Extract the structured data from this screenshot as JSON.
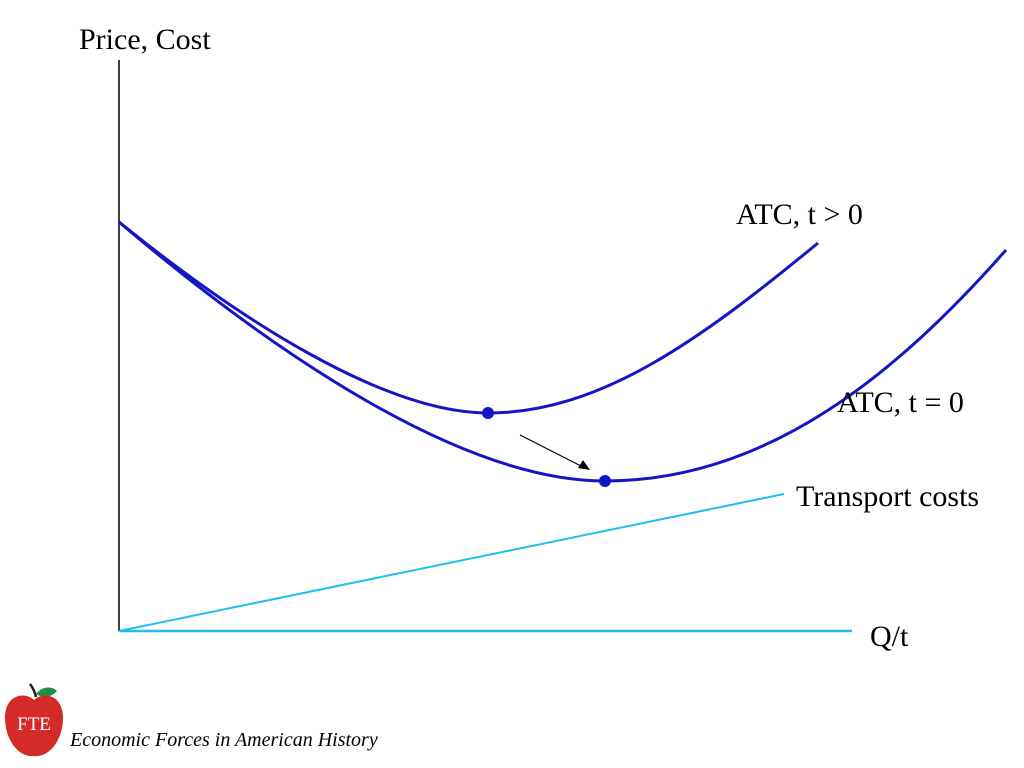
{
  "labels": {
    "y_axis": "Price, Cost",
    "x_axis": "Q/t",
    "atc_high": "ATC, t > 0",
    "atc_low": "ATC, t = 0",
    "transport": "Transport costs"
  },
  "footer": {
    "logo_text": "FTE",
    "caption": "Economic Forces in American History"
  },
  "colors": {
    "curve": "#1515c8",
    "transport": "#1fc0ef",
    "axis": "#000000",
    "logo_red": "#d42a2a",
    "logo_leaf": "#1f8f4a"
  }
}
